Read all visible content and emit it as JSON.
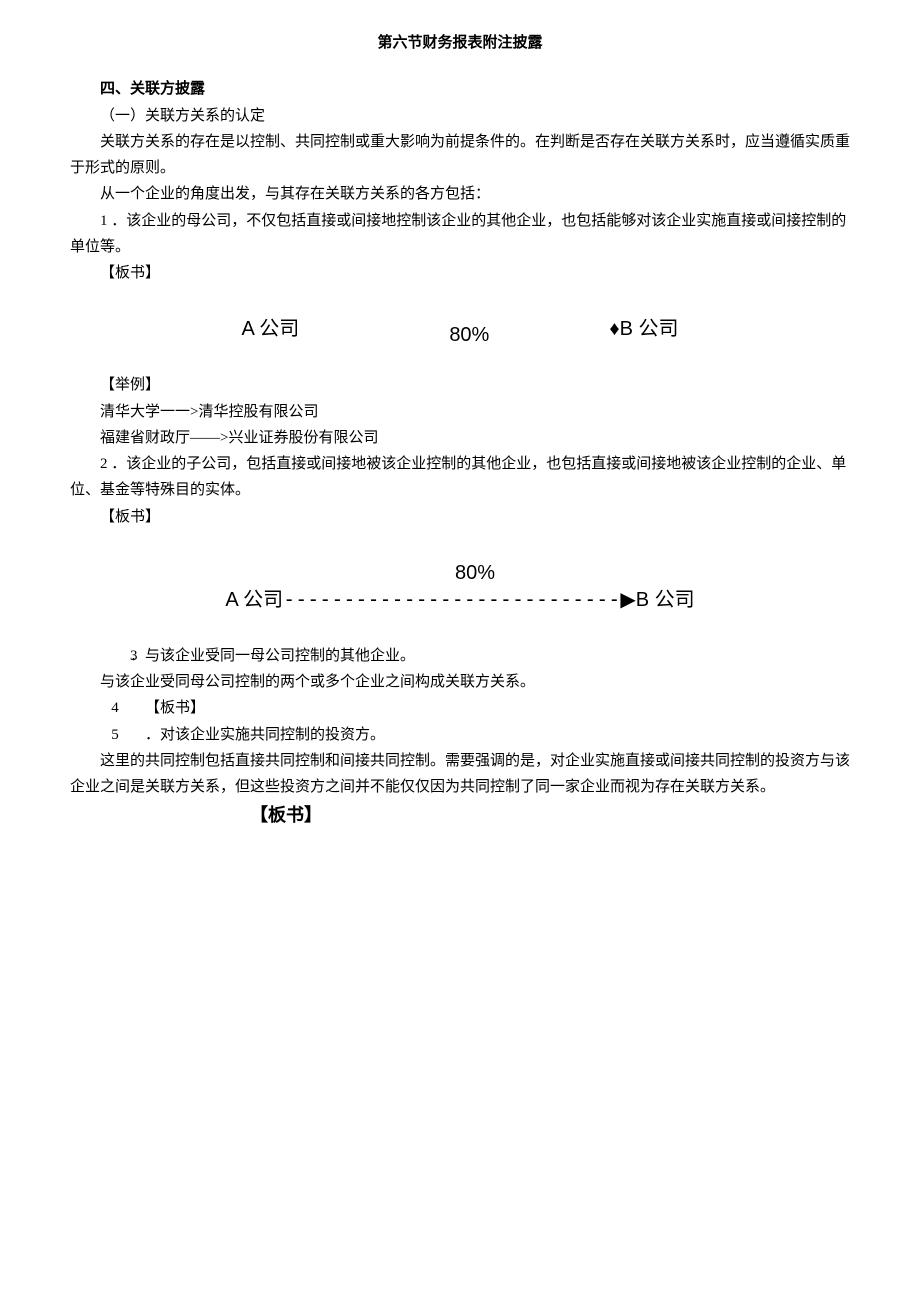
{
  "title": "第六节财务报表附注披露",
  "heading4": "四、关联方披露",
  "sub1": "（一）关联方关系的认定",
  "p1": "关联方关系的存在是以控制、共同控制或重大影响为前提条件的。在判断是否存在关联方关系时，应当遵循实质重于形式的原则。",
  "p2": "从一个企业的角度出发，与其存在关联方关系的各方包括：",
  "item1": "1 ．该企业的母公司，不仅包括直接或间接地控制该企业的其他企业，也包括能够对该企业实施直接或间接控制的单位等。",
  "banshu1": "【板书】",
  "diagram1": {
    "left": "A 公司",
    "percent": "80%",
    "marker": "♦",
    "right": "B 公司"
  },
  "juli": "【举例】",
  "ex1": "清华大学一一>清华控股有限公司",
  "ex2": "福建省财政厅——>兴业证券股份有限公司",
  "item2": "2 ．该企业的子公司，包括直接或间接地被该企业控制的其他企业，也包括直接或间接地被该企业控制的企业、单位、基金等特殊目的实体。",
  "banshu2": "【板书】",
  "diagram2": {
    "left": "A 公司",
    "percent": "80%",
    "dashes": "----------------------------",
    "arrow": "▶",
    "right": "B 公司"
  },
  "item3_num": "3",
  "item3_txt": "．与该企业受同一母公司控制的其他企业。",
  "p3": "与该企业受同母公司控制的两个或多个企业之间构成关联方关系。",
  "row4_num": "4",
  "row4_txt": "【板书】",
  "row5_num": "5",
  "row5_txt": "．对该企业实施共同控制的投资方。",
  "p4": "这里的共同控制包括直接共同控制和间接共同控制。需要强调的是，对企业实施直接或间接共同控制的投资方与该企业之间是关联方关系，但这些投资方之间并不能仅仅因为共同控制了同一家企业而视为存在关联方关系。",
  "banshu_big": "【板书】"
}
